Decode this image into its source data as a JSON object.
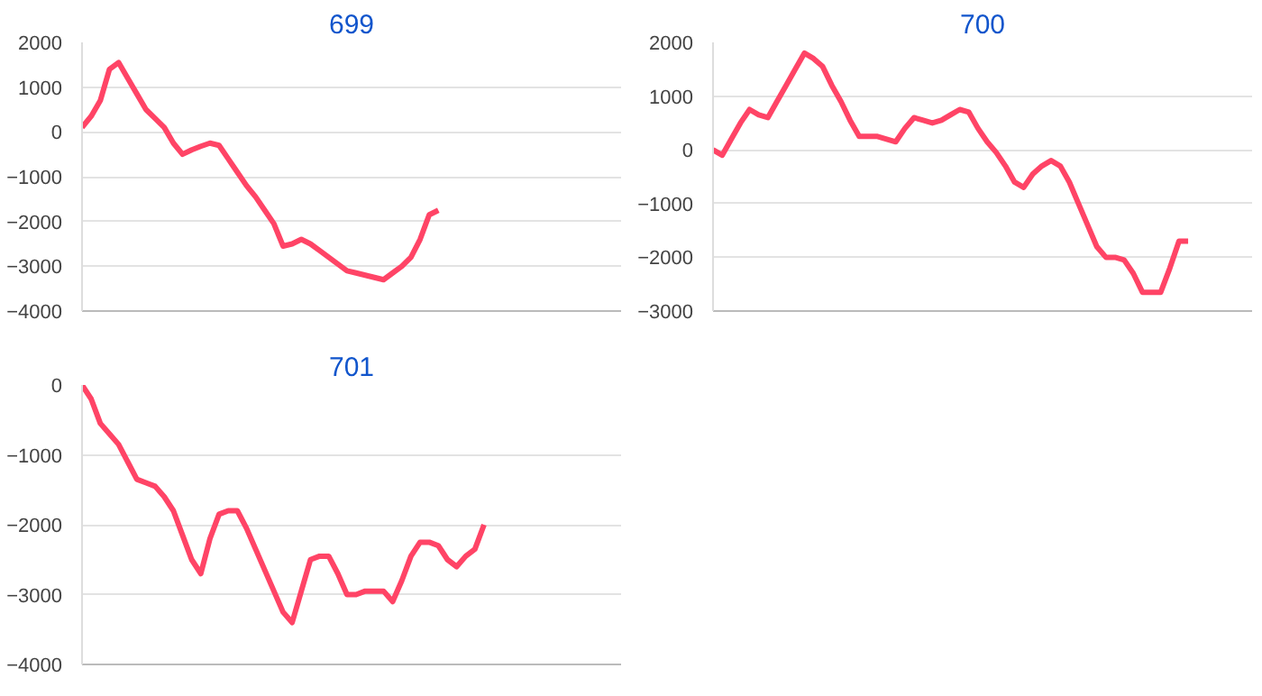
{
  "chart_data": [
    {
      "type": "line",
      "title": "699",
      "categories": [
        null,
        null,
        null,
        null,
        null,
        null,
        null,
        null,
        null,
        null,
        null,
        null,
        null,
        null,
        null,
        null,
        null,
        null,
        null,
        null,
        null,
        null,
        null,
        null,
        null,
        null,
        null,
        null,
        null,
        null,
        null,
        null,
        null,
        null,
        null,
        null,
        null,
        null,
        null,
        null,
        null,
        null,
        null,
        null,
        null,
        null,
        null,
        null,
        null,
        null,
        null,
        null,
        null,
        null,
        null,
        null,
        null,
        null,
        null,
        null
      ],
      "series": [
        {
          "color": "#ff4466",
          "values": [
            100,
            350,
            700,
            1400,
            1550,
            1200,
            850,
            500,
            300,
            100,
            -250,
            -500,
            -400,
            -320,
            -250,
            -300,
            -600,
            -900,
            -1200,
            -1450,
            -1750,
            -2050,
            -2550,
            -2500,
            -2400,
            -2500,
            -2650,
            -2800,
            -2950,
            -3100,
            -3150,
            -3200,
            -3250,
            -3300,
            -3150,
            -3000,
            -2800,
            -2400,
            -1850,
            -1750,
            null,
            null,
            null,
            null,
            null,
            null,
            null,
            null,
            null,
            null,
            null,
            null,
            null,
            null,
            null,
            null,
            null,
            null,
            null,
            null
          ]
        }
      ],
      "ylim": [
        -4000,
        2000
      ],
      "yticks": [
        -4000,
        -3000,
        -2000,
        -1000,
        0,
        1000,
        2000
      ],
      "grid": "y",
      "tick_labels": "y",
      "marker": "none",
      "line_style": "solid"
    },
    {
      "type": "line",
      "title": "700",
      "categories": [
        null,
        null,
        null,
        null,
        null,
        null,
        null,
        null,
        null,
        null,
        null,
        null,
        null,
        null,
        null,
        null,
        null,
        null,
        null,
        null,
        null,
        null,
        null,
        null,
        null,
        null,
        null,
        null,
        null,
        null,
        null,
        null,
        null,
        null,
        null,
        null,
        null,
        null,
        null,
        null,
        null,
        null,
        null,
        null,
        null,
        null,
        null,
        null,
        null,
        null,
        null,
        null,
        null,
        null,
        null,
        null,
        null,
        null,
        null,
        null
      ],
      "series": [
        {
          "color": "#ff4466",
          "values": [
            0,
            -100,
            200,
            500,
            750,
            650,
            600,
            900,
            1200,
            1500,
            1800,
            1700,
            1550,
            1200,
            900,
            550,
            250,
            250,
            250,
            200,
            150,
            400,
            600,
            550,
            500,
            550,
            650,
            750,
            700,
            400,
            150,
            -50,
            -300,
            -600,
            -700,
            -450,
            -300,
            -200,
            -300,
            -600,
            -1000,
            -1400,
            -1800,
            -2000,
            -2000,
            -2050,
            -2300,
            -2650,
            -2650,
            -2650,
            -2200,
            -1700,
            -1700,
            null,
            null,
            null,
            null,
            null,
            null,
            null
          ]
        }
      ],
      "ylim": [
        -3000,
        2000
      ],
      "yticks": [
        -3000,
        -2000,
        -1000,
        0,
        1000,
        2000
      ],
      "grid": "y",
      "tick_labels": "y",
      "marker": "none",
      "line_style": "solid"
    },
    {
      "type": "line",
      "title": "701",
      "categories": [
        null,
        null,
        null,
        null,
        null,
        null,
        null,
        null,
        null,
        null,
        null,
        null,
        null,
        null,
        null,
        null,
        null,
        null,
        null,
        null,
        null,
        null,
        null,
        null,
        null,
        null,
        null,
        null,
        null,
        null,
        null,
        null,
        null,
        null,
        null,
        null,
        null,
        null,
        null,
        null,
        null,
        null,
        null,
        null,
        null,
        null,
        null,
        null,
        null,
        null,
        null,
        null,
        null,
        null,
        null,
        null,
        null,
        null,
        null,
        null
      ],
      "series": [
        {
          "color": "#ff4466",
          "values": [
            0,
            -200,
            -550,
            -700,
            -850,
            -1100,
            -1350,
            -1400,
            -1450,
            -1600,
            -1800,
            -2150,
            -2500,
            -2700,
            -2200,
            -1850,
            -1800,
            -1800,
            -2050,
            -2350,
            -2650,
            -2950,
            -3250,
            -3400,
            -2950,
            -2500,
            -2450,
            -2450,
            -2700,
            -3000,
            -3000,
            -2950,
            -2950,
            -2950,
            -3100,
            -2800,
            -2450,
            -2250,
            -2250,
            -2300,
            -2500,
            -2600,
            -2450,
            -2350,
            -2000,
            null,
            null,
            null,
            null,
            null,
            null,
            null,
            null,
            null,
            null,
            null,
            null,
            null,
            null,
            null
          ]
        }
      ],
      "ylim": [
        -4000,
        0
      ],
      "yticks": [
        -4000,
        -3000,
        -2000,
        -1000,
        0
      ],
      "grid": "y",
      "tick_labels": "y",
      "marker": "none",
      "line_style": "solid"
    }
  ]
}
